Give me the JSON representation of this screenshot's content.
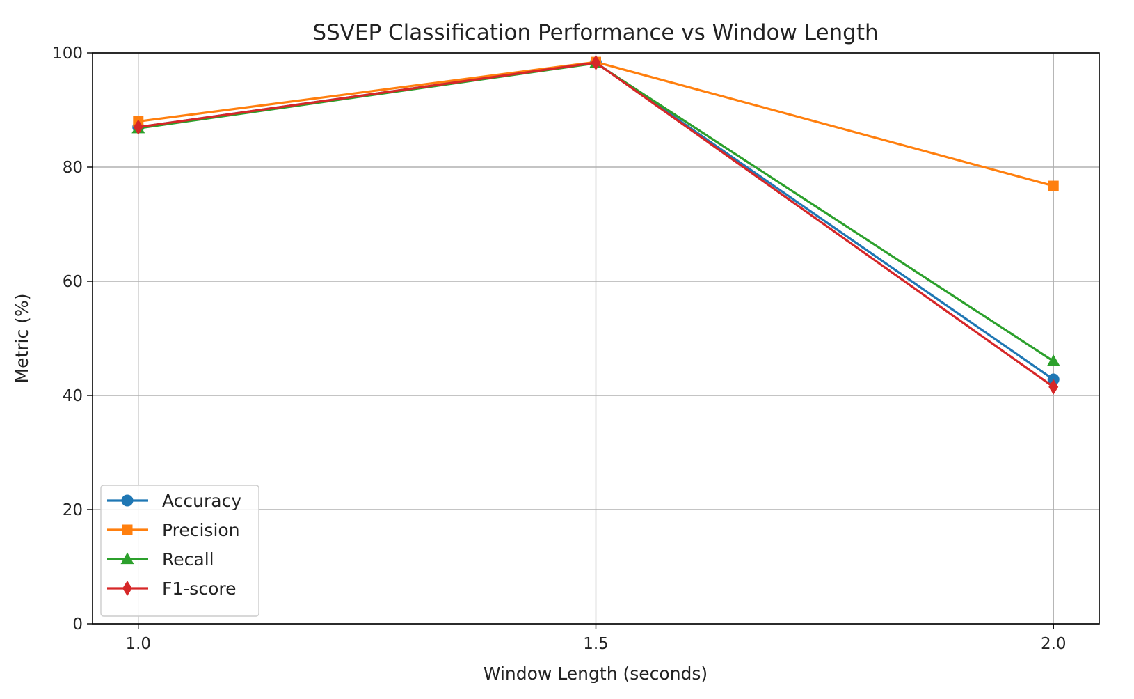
{
  "chart_data": {
    "type": "line",
    "title": "SSVEP Classification Performance vs Window Length",
    "xlabel": "Window Length (seconds)",
    "ylabel": "Metric (%)",
    "x": [
      1.0,
      1.5,
      2.0
    ],
    "x_tick_labels": [
      "1.0",
      "1.5",
      "2.0"
    ],
    "xlim": [
      0.95,
      2.05
    ],
    "ylim": [
      0,
      100
    ],
    "y_ticks": [
      0,
      20,
      40,
      60,
      80,
      100
    ],
    "y_tick_labels": [
      "0",
      "20",
      "40",
      "60",
      "80",
      "100"
    ],
    "grid": true,
    "legend_position": "lower-left",
    "series": [
      {
        "name": "Accuracy",
        "marker": "circle",
        "color": "#1f77b4",
        "values": [
          87.0,
          98.3,
          42.8
        ]
      },
      {
        "name": "Precision",
        "marker": "square",
        "color": "#ff7f0e",
        "values": [
          88.0,
          98.4,
          76.7
        ]
      },
      {
        "name": "Recall",
        "marker": "triangle",
        "color": "#2ca02c",
        "values": [
          86.8,
          98.2,
          46.0
        ]
      },
      {
        "name": "F1-score",
        "marker": "diamond",
        "color": "#d62728",
        "values": [
          87.0,
          98.3,
          41.5
        ]
      }
    ]
  }
}
